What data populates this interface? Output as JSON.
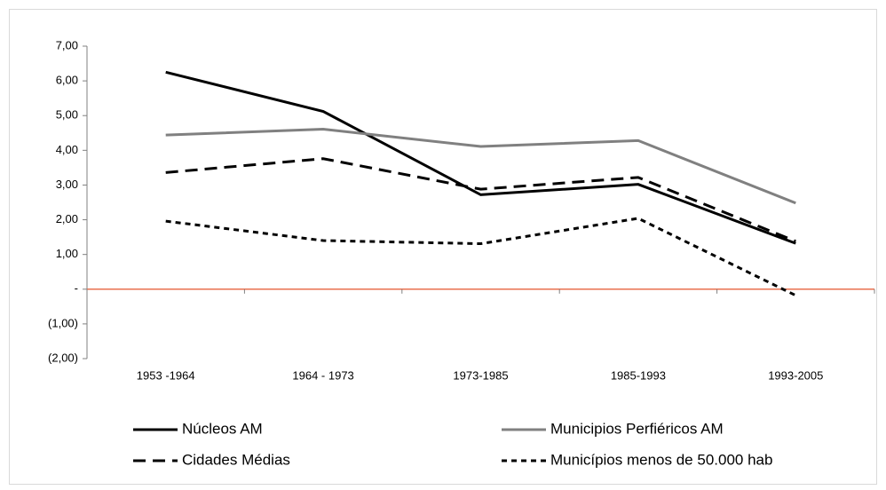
{
  "chart_data": {
    "type": "line",
    "categories": [
      "1953 -1964",
      "1964 - 1973",
      "1973-1985",
      "1985-1993",
      "1993-2005"
    ],
    "series": [
      {
        "name": "Núcleos AM",
        "color": "#000000",
        "line_style": "solid",
        "values": [
          6.25,
          5.12,
          2.72,
          3.02,
          1.32
        ]
      },
      {
        "name": "Municipios Perfiéricos AM",
        "color": "#808080",
        "line_style": "solid",
        "values": [
          4.44,
          4.61,
          4.11,
          4.28,
          2.48
        ]
      },
      {
        "name": "Cidades Médias",
        "color": "#000000",
        "line_style": "long-dash",
        "values": [
          3.36,
          3.76,
          2.88,
          3.22,
          1.38
        ]
      },
      {
        "name": "Municípios menos de 50.000 hab",
        "color": "#000000",
        "line_style": "short-dash",
        "values": [
          1.96,
          1.4,
          1.31,
          2.04,
          -0.18
        ]
      }
    ],
    "ylim": [
      -2,
      7
    ],
    "yticks": [
      {
        "value": 7,
        "label": "7,00"
      },
      {
        "value": 6,
        "label": "6,00"
      },
      {
        "value": 5,
        "label": "5,00"
      },
      {
        "value": 4,
        "label": "4,00"
      },
      {
        "value": 3,
        "label": "3,00"
      },
      {
        "value": 2,
        "label": "2,00"
      },
      {
        "value": 1,
        "label": "1,00"
      },
      {
        "value": 0,
        "label": "-"
      },
      {
        "value": -1,
        "label": "(1,00)"
      },
      {
        "value": -2,
        "label": "(2,00)"
      }
    ],
    "zero_line_color": "#e8704f",
    "legend": "bottom"
  }
}
